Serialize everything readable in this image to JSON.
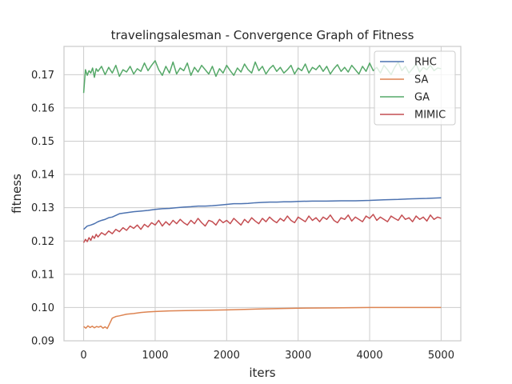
{
  "chart_data": {
    "type": "line",
    "title": "travelingsalesman - Convergence Graph of Fitness",
    "xlabel": "iters",
    "ylabel": "fitness",
    "xlim": [
      -275,
      5275
    ],
    "ylim": [
      0.09,
      0.1785
    ],
    "xticks": [
      0,
      1000,
      2000,
      3000,
      4000,
      5000
    ],
    "xtick_labels": [
      "0",
      "1000",
      "2000",
      "3000",
      "4000",
      "5000"
    ],
    "yticks": [
      0.09,
      0.1,
      0.11,
      0.12,
      0.13,
      0.14,
      0.15,
      0.16,
      0.17
    ],
    "ytick_labels": [
      "0.09",
      "0.10",
      "0.11",
      "0.12",
      "0.13",
      "0.14",
      "0.15",
      "0.16",
      "0.17"
    ],
    "grid": true,
    "legend_position": "top-right",
    "series": [
      {
        "name": "RHC",
        "color": "#4c72b0",
        "x": [
          0,
          50,
          100,
          150,
          200,
          250,
          300,
          350,
          400,
          500,
          600,
          700,
          800,
          900,
          1000,
          1100,
          1200,
          1300,
          1400,
          1500,
          1600,
          1700,
          1800,
          1900,
          2000,
          2100,
          2200,
          2300,
          2400,
          2500,
          2600,
          2700,
          2800,
          2900,
          3000,
          3200,
          3400,
          3600,
          3800,
          4000,
          4200,
          4400,
          4600,
          4800,
          5000
        ],
        "y": [
          0.1235,
          0.1245,
          0.1248,
          0.1252,
          0.1258,
          0.1262,
          0.1265,
          0.127,
          0.1272,
          0.1282,
          0.1285,
          0.1288,
          0.129,
          0.1292,
          0.1295,
          0.1297,
          0.1298,
          0.13,
          0.1302,
          0.1303,
          0.1305,
          0.1305,
          0.1306,
          0.1308,
          0.131,
          0.1312,
          0.1312,
          0.1313,
          0.1315,
          0.1316,
          0.1317,
          0.1317,
          0.1318,
          0.1318,
          0.1319,
          0.132,
          0.132,
          0.1321,
          0.1321,
          0.1322,
          0.1324,
          0.1325,
          0.1327,
          0.1328,
          0.133
        ]
      },
      {
        "name": "SA",
        "color": "#dd8452",
        "x": [
          0,
          30,
          60,
          90,
          120,
          150,
          180,
          210,
          240,
          270,
          300,
          330,
          360,
          400,
          450,
          500,
          600,
          700,
          800,
          900,
          1000,
          1200,
          1500,
          2000,
          2500,
          3000,
          3500,
          4000,
          4500,
          5000
        ],
        "y": [
          0.0943,
          0.0938,
          0.0945,
          0.094,
          0.0944,
          0.0939,
          0.0943,
          0.0941,
          0.0944,
          0.0938,
          0.0942,
          0.0937,
          0.095,
          0.0968,
          0.0973,
          0.0975,
          0.098,
          0.0982,
          0.0985,
          0.0987,
          0.0988,
          0.099,
          0.0991,
          0.0993,
          0.0996,
          0.0998,
          0.0999,
          0.1,
          0.1,
          0.1
        ]
      },
      {
        "name": "GA",
        "color": "#55a868",
        "x": [
          0,
          25,
          50,
          75,
          100,
          125,
          150,
          175,
          200,
          250,
          300,
          350,
          400,
          450,
          500,
          550,
          600,
          650,
          700,
          750,
          800,
          850,
          900,
          950,
          1000,
          1050,
          1100,
          1150,
          1200,
          1250,
          1300,
          1350,
          1400,
          1450,
          1500,
          1550,
          1600,
          1650,
          1700,
          1750,
          1800,
          1850,
          1900,
          1950,
          2000,
          2050,
          2100,
          2150,
          2200,
          2250,
          2300,
          2350,
          2400,
          2450,
          2500,
          2550,
          2600,
          2650,
          2700,
          2750,
          2800,
          2850,
          2900,
          2950,
          3000,
          3050,
          3100,
          3150,
          3200,
          3250,
          3300,
          3350,
          3400,
          3450,
          3500,
          3550,
          3600,
          3650,
          3700,
          3750,
          3800,
          3850,
          3900,
          3950,
          4000,
          4050,
          4100,
          4150,
          4200,
          4250,
          4300,
          4350,
          4400,
          4450,
          4500,
          4550,
          4600,
          4650,
          4700,
          4750,
          4800,
          4850,
          4900,
          4950,
          5000
        ],
        "y": [
          0.1645,
          0.1715,
          0.1698,
          0.1712,
          0.1705,
          0.172,
          0.1692,
          0.1718,
          0.171,
          0.1725,
          0.17,
          0.1722,
          0.1705,
          0.1728,
          0.1695,
          0.1715,
          0.1708,
          0.1725,
          0.1702,
          0.1718,
          0.171,
          0.1735,
          0.1712,
          0.1728,
          0.1742,
          0.1715,
          0.1698,
          0.1725,
          0.1705,
          0.1738,
          0.1702,
          0.172,
          0.1712,
          0.1735,
          0.1698,
          0.1722,
          0.1708,
          0.1728,
          0.1715,
          0.1702,
          0.1725,
          0.1695,
          0.1718,
          0.1705,
          0.1728,
          0.1712,
          0.1698,
          0.172,
          0.1708,
          0.1732,
          0.1715,
          0.1705,
          0.1738,
          0.1712,
          0.1725,
          0.1702,
          0.1718,
          0.1728,
          0.171,
          0.1722,
          0.1705,
          0.1715,
          0.1728,
          0.1702,
          0.172,
          0.1712,
          0.1732,
          0.1705,
          0.1722,
          0.1715,
          0.1728,
          0.171,
          0.1725,
          0.1702,
          0.1718,
          0.173,
          0.171,
          0.1722,
          0.1708,
          0.1728,
          0.1715,
          0.1702,
          0.1725,
          0.171,
          0.1735,
          0.1712,
          0.1722,
          0.1705,
          0.1728,
          0.1715,
          0.17,
          0.1722,
          0.1738,
          0.1712,
          0.1725,
          0.1705,
          0.1718,
          0.1732,
          0.1708,
          0.1722,
          0.1715,
          0.1728,
          0.1712,
          0.172,
          0.1718
        ]
      },
      {
        "name": "MIMIC",
        "color": "#c44e52",
        "x": [
          0,
          25,
          50,
          75,
          100,
          125,
          150,
          175,
          200,
          250,
          300,
          350,
          400,
          450,
          500,
          550,
          600,
          650,
          700,
          750,
          800,
          850,
          900,
          950,
          1000,
          1050,
          1100,
          1150,
          1200,
          1250,
          1300,
          1350,
          1400,
          1450,
          1500,
          1550,
          1600,
          1650,
          1700,
          1750,
          1800,
          1850,
          1900,
          1950,
          2000,
          2050,
          2100,
          2150,
          2200,
          2250,
          2300,
          2350,
          2400,
          2450,
          2500,
          2550,
          2600,
          2650,
          2700,
          2750,
          2800,
          2850,
          2900,
          2950,
          3000,
          3050,
          3100,
          3150,
          3200,
          3250,
          3300,
          3350,
          3400,
          3450,
          3500,
          3550,
          3600,
          3650,
          3700,
          3750,
          3800,
          3850,
          3900,
          3950,
          4000,
          4050,
          4100,
          4150,
          4200,
          4250,
          4300,
          4350,
          4400,
          4450,
          4500,
          4550,
          4600,
          4650,
          4700,
          4750,
          4800,
          4850,
          4900,
          4950,
          5000
        ],
        "y": [
          0.1195,
          0.1205,
          0.1198,
          0.121,
          0.1202,
          0.1215,
          0.1208,
          0.122,
          0.1212,
          0.1225,
          0.1218,
          0.123,
          0.1222,
          0.1235,
          0.1228,
          0.124,
          0.1232,
          0.1245,
          0.1238,
          0.1248,
          0.1235,
          0.125,
          0.1242,
          0.1255,
          0.1248,
          0.1262,
          0.1245,
          0.1258,
          0.1248,
          0.1262,
          0.1252,
          0.1265,
          0.1255,
          0.1248,
          0.1262,
          0.1252,
          0.1268,
          0.1255,
          0.1245,
          0.1262,
          0.1258,
          0.1248,
          0.1265,
          0.1255,
          0.1262,
          0.1252,
          0.1268,
          0.1258,
          0.1248,
          0.1265,
          0.1255,
          0.127,
          0.126,
          0.1252,
          0.1268,
          0.1258,
          0.1272,
          0.1262,
          0.1255,
          0.1268,
          0.126,
          0.1275,
          0.1262,
          0.1255,
          0.1272,
          0.1265,
          0.1258,
          0.1275,
          0.1262,
          0.127,
          0.1258,
          0.1272,
          0.1265,
          0.1278,
          0.1262,
          0.1255,
          0.127,
          0.1265,
          0.1278,
          0.126,
          0.1272,
          0.1265,
          0.1258,
          0.1275,
          0.1268,
          0.128,
          0.1262,
          0.1272,
          0.1265,
          0.1258,
          0.1275,
          0.1268,
          0.1262,
          0.1278,
          0.1265,
          0.127,
          0.1258,
          0.1275,
          0.1265,
          0.1272,
          0.126,
          0.1278,
          0.1265,
          0.1272,
          0.1268
        ]
      }
    ]
  }
}
